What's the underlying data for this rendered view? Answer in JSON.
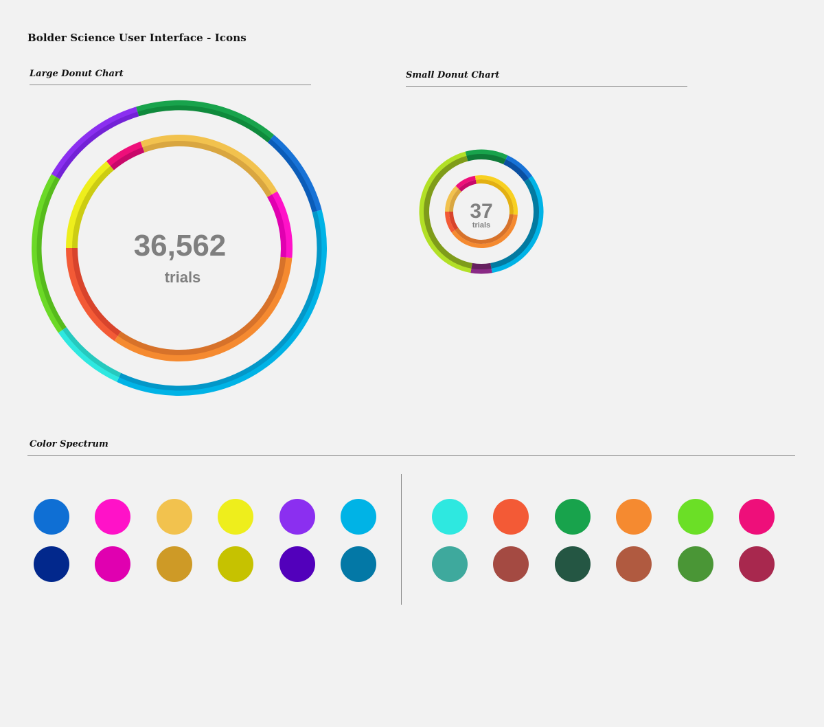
{
  "page_title": "Bolder Science User Interface - Icons",
  "sections": {
    "large": "Large Donut Chart",
    "small": "Small Donut Chart",
    "spectrum": "Color Spectrum"
  },
  "large_donut": {
    "value_text": "36,562",
    "unit_text": "trials",
    "outer_ring": [
      {
        "start": -60,
        "end": -17,
        "light": "#8b2ff0",
        "dark": "#7322d6"
      },
      {
        "start": -17,
        "end": 40,
        "light": "#18a34c",
        "dark": "#0f8a3c"
      },
      {
        "start": 40,
        "end": 75,
        "light": "#1772d6",
        "dark": "#0b5cb8"
      },
      {
        "start": 75,
        "end": 205,
        "light": "#00b3e6",
        "dark": "#0397c8"
      },
      {
        "start": 205,
        "end": 235,
        "light": "#2ee8e0",
        "dark": "#26c9be"
      },
      {
        "start": 235,
        "end": 300,
        "light": "#6bd926",
        "dark": "#56bb1c"
      }
    ],
    "inner_ring": [
      {
        "start": -40,
        "end": -20,
        "light": "#ee0f7a",
        "dark": "#c8086a"
      },
      {
        "start": -20,
        "end": 60,
        "light": "#f2c24e",
        "dark": "#d9a640"
      },
      {
        "start": 60,
        "end": 95,
        "light": "#ff12c8",
        "dark": "#e000b0"
      },
      {
        "start": 95,
        "end": 215,
        "light": "#f58a30",
        "dark": "#d7722a"
      },
      {
        "start": 215,
        "end": 270,
        "light": "#f35a36",
        "dark": "#d8442c"
      },
      {
        "start": 270,
        "end": 320,
        "light": "#eeee1c",
        "dark": "#cccc12"
      }
    ]
  },
  "small_donut": {
    "value_text": "37",
    "unit_text": "trials",
    "outer_ring": [
      {
        "start": -15,
        "end": 25,
        "light": "#18a34c",
        "dark": "#0f7a38"
      },
      {
        "start": 25,
        "end": 55,
        "light": "#1772d6",
        "dark": "#0b4fa0"
      },
      {
        "start": 55,
        "end": 170,
        "light": "#00b3e6",
        "dark": "#037aa0"
      },
      {
        "start": 170,
        "end": 190,
        "light": "#8a2a86",
        "dark": "#66205f"
      },
      {
        "start": 190,
        "end": 345,
        "light": "#b2e026",
        "dark": "#7f9c1a"
      }
    ],
    "inner_ring": [
      {
        "start": -45,
        "end": -10,
        "light": "#ee0f7a",
        "dark": "#c8086a"
      },
      {
        "start": -10,
        "end": 95,
        "light": "#f8d020",
        "dark": "#e3b012"
      },
      {
        "start": 95,
        "end": 235,
        "light": "#f58a30",
        "dark": "#d7722a"
      },
      {
        "start": 235,
        "end": 270,
        "light": "#f35a36",
        "dark": "#d8442c"
      },
      {
        "start": 270,
        "end": 315,
        "light": "#f2c24e",
        "dark": "#d9a640"
      }
    ]
  },
  "spectrum": {
    "left_top": [
      "#0f6fd4",
      "#ff12c8",
      "#f2c24e",
      "#eeee1c",
      "#8b2ff0",
      "#00b3e6"
    ],
    "left_bottom": [
      "#02288c",
      "#e000b0",
      "#ce9a26",
      "#c6c200",
      "#5200bb",
      "#0378a6"
    ],
    "right_top": [
      "#2ee8e0",
      "#f35a36",
      "#18a34c",
      "#f58a30",
      "#6bdf26",
      "#ee0f7a"
    ],
    "right_bottom": [
      "#3ea99d",
      "#a44a42",
      "#245643",
      "#b05a40",
      "#4a9636",
      "#a8284e"
    ]
  }
}
